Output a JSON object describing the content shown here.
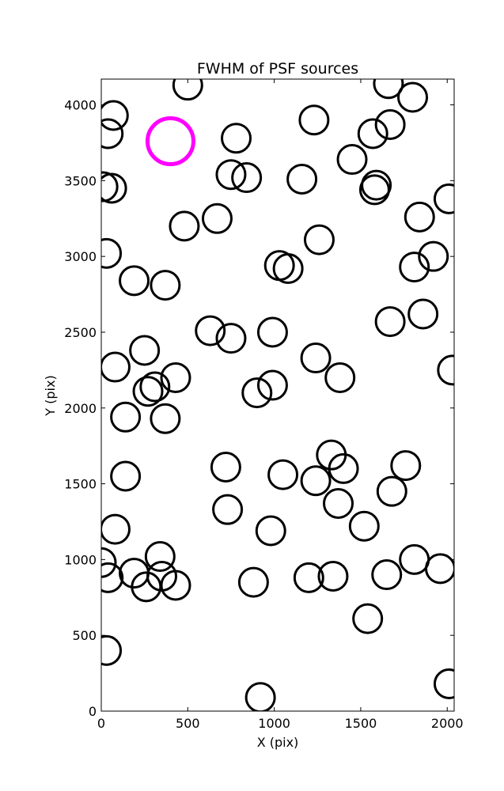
{
  "chart_data": {
    "type": "scatter",
    "title": "FWHM of PSF sources",
    "xlabel": "X (pix)",
    "ylabel": "Y (pix)",
    "xlim": [
      0,
      2040
    ],
    "ylim": [
      0,
      4170
    ],
    "xticks": [
      0,
      500,
      1000,
      1500,
      2000
    ],
    "yticks": [
      0,
      500,
      1000,
      1500,
      2000,
      2500,
      3000,
      3500,
      4000
    ],
    "grid": false,
    "marker": "open-circle",
    "series": [
      {
        "color": "#000000",
        "points": [
          {
            "x": 500,
            "y": 4130
          },
          {
            "x": 70,
            "y": 3930
          },
          {
            "x": 40,
            "y": 3810
          },
          {
            "x": 780,
            "y": 3780
          },
          {
            "x": 1230,
            "y": 3900
          },
          {
            "x": 1570,
            "y": 3810
          },
          {
            "x": 1670,
            "y": 3870
          },
          {
            "x": 1660,
            "y": 4140
          },
          {
            "x": 1800,
            "y": 4050
          },
          {
            "x": 10,
            "y": 3460
          },
          {
            "x": 60,
            "y": 3450
          },
          {
            "x": 750,
            "y": 3540
          },
          {
            "x": 840,
            "y": 3520
          },
          {
            "x": 1160,
            "y": 3510
          },
          {
            "x": 1450,
            "y": 3640
          },
          {
            "x": 1590,
            "y": 3470
          },
          {
            "x": 1580,
            "y": 3440
          },
          {
            "x": 2010,
            "y": 3380
          },
          {
            "x": 480,
            "y": 3200
          },
          {
            "x": 670,
            "y": 3250
          },
          {
            "x": 1260,
            "y": 3110
          },
          {
            "x": 1840,
            "y": 3260
          },
          {
            "x": 30,
            "y": 3020
          },
          {
            "x": 190,
            "y": 2840
          },
          {
            "x": 370,
            "y": 2810
          },
          {
            "x": 1030,
            "y": 2940
          },
          {
            "x": 1080,
            "y": 2920
          },
          {
            "x": 1810,
            "y": 2930
          },
          {
            "x": 1920,
            "y": 3000
          },
          {
            "x": 630,
            "y": 2510
          },
          {
            "x": 750,
            "y": 2460
          },
          {
            "x": 990,
            "y": 2500
          },
          {
            "x": 1670,
            "y": 2570
          },
          {
            "x": 1860,
            "y": 2620
          },
          {
            "x": 80,
            "y": 2270
          },
          {
            "x": 250,
            "y": 2380
          },
          {
            "x": 270,
            "y": 2110
          },
          {
            "x": 310,
            "y": 2140
          },
          {
            "x": 430,
            "y": 2200
          },
          {
            "x": 990,
            "y": 2150
          },
          {
            "x": 900,
            "y": 2100
          },
          {
            "x": 1240,
            "y": 2330
          },
          {
            "x": 1380,
            "y": 2200
          },
          {
            "x": 2030,
            "y": 2250
          },
          {
            "x": 140,
            "y": 1940
          },
          {
            "x": 370,
            "y": 1930
          },
          {
            "x": 140,
            "y": 1550
          },
          {
            "x": 720,
            "y": 1610
          },
          {
            "x": 1050,
            "y": 1560
          },
          {
            "x": 1240,
            "y": 1520
          },
          {
            "x": 1330,
            "y": 1690
          },
          {
            "x": 1400,
            "y": 1600
          },
          {
            "x": 1760,
            "y": 1620
          },
          {
            "x": 1680,
            "y": 1450
          },
          {
            "x": 730,
            "y": 1330
          },
          {
            "x": 1370,
            "y": 1370
          },
          {
            "x": 80,
            "y": 1200
          },
          {
            "x": 980,
            "y": 1190
          },
          {
            "x": 1520,
            "y": 1220
          },
          {
            "x": 0,
            "y": 980
          },
          {
            "x": 40,
            "y": 880
          },
          {
            "x": 190,
            "y": 910
          },
          {
            "x": 340,
            "y": 1020
          },
          {
            "x": 350,
            "y": 890
          },
          {
            "x": 260,
            "y": 820
          },
          {
            "x": 430,
            "y": 830
          },
          {
            "x": 880,
            "y": 850
          },
          {
            "x": 1200,
            "y": 880
          },
          {
            "x": 1340,
            "y": 890
          },
          {
            "x": 1650,
            "y": 900
          },
          {
            "x": 1810,
            "y": 1000
          },
          {
            "x": 1960,
            "y": 940
          },
          {
            "x": 30,
            "y": 400
          },
          {
            "x": 1540,
            "y": 610
          },
          {
            "x": 920,
            "y": 90
          },
          {
            "x": 2010,
            "y": 180
          }
        ]
      },
      {
        "color": "#ff00ff",
        "points": [
          {
            "x": 400,
            "y": 3760
          }
        ]
      }
    ]
  }
}
